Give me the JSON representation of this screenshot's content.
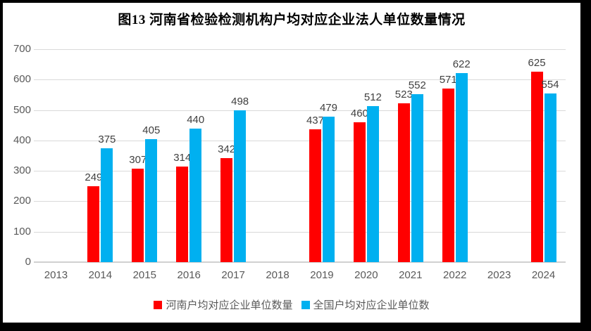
{
  "chart_data": {
    "type": "bar",
    "title": "图13  河南省检验检测机构户均对应企业法人单位数量情况",
    "categories": [
      "2013",
      "2014",
      "2015",
      "2016",
      "2017",
      "2018",
      "2019",
      "2020",
      "2021",
      "2022",
      "2023",
      "2024"
    ],
    "series": [
      {
        "name": "河南户均对应企业单位数量",
        "color": "#FF0000",
        "values": [
          null,
          249,
          307,
          314,
          342,
          null,
          437,
          460,
          523,
          571,
          null,
          625
        ]
      },
      {
        "name": "全国户均对应企业单位数",
        "color": "#00B0F0",
        "values": [
          null,
          375,
          405,
          440,
          498,
          null,
          479,
          512,
          552,
          622,
          null,
          554
        ]
      }
    ],
    "ylim": [
      0,
      700
    ],
    "ytick_step": 100,
    "grid": true,
    "legend_position": "bottom",
    "colors": {
      "gridline": "#d9d9d9",
      "axis_text": "#595959",
      "data_label": "#404040",
      "title_text": "#000000",
      "frame": "#000000",
      "background": "#ffffff"
    }
  }
}
